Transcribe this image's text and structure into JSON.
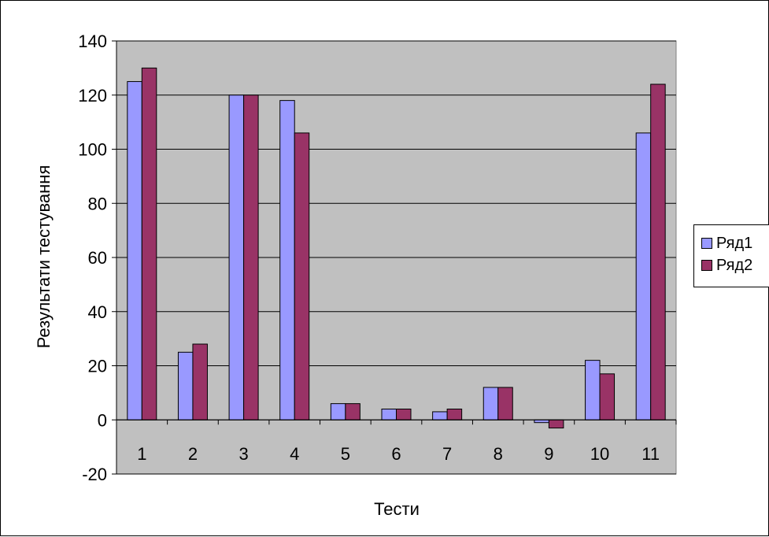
{
  "chart_data": {
    "type": "bar",
    "categories": [
      "1",
      "2",
      "3",
      "4",
      "5",
      "6",
      "7",
      "8",
      "9",
      "10",
      "11"
    ],
    "series": [
      {
        "name": "Ряд1",
        "color": "#9999ff",
        "values": [
          125,
          25,
          120,
          118,
          6,
          4,
          3,
          12,
          -1,
          22,
          106
        ]
      },
      {
        "name": "Ряд2",
        "color": "#993366",
        "values": [
          130,
          28,
          120,
          106,
          6,
          4,
          4,
          12,
          -3,
          17,
          124
        ]
      }
    ],
    "xlabel": "Тести",
    "ylabel": "Результати тестування",
    "ylim": [
      -20,
      140
    ],
    "yticks": [
      "-20",
      "0",
      "20",
      "40",
      "60",
      "80",
      "100",
      "120",
      "140"
    ],
    "grid": true,
    "plot_background": "#c0c0c0",
    "legend_position": "right"
  }
}
